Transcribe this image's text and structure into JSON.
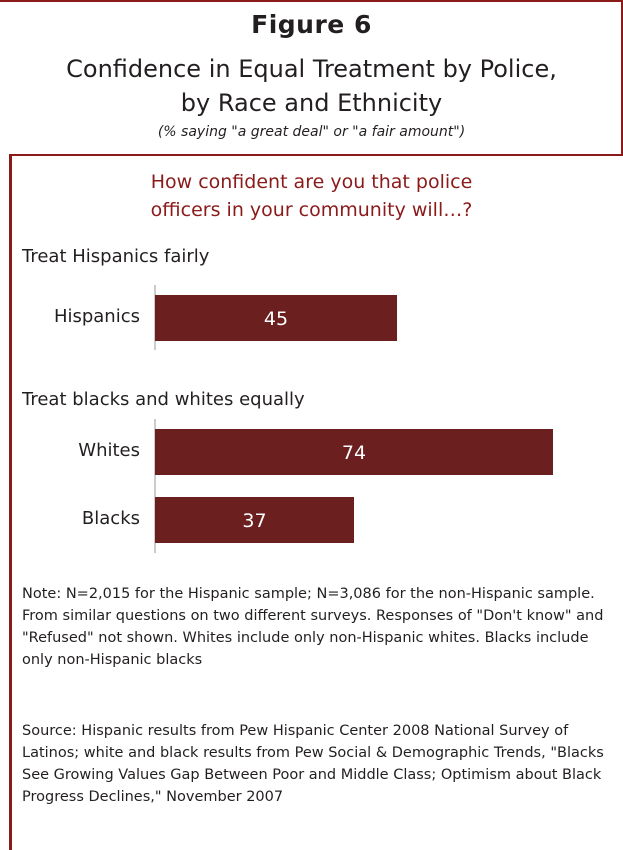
{
  "figure_label": "Figure 6",
  "title_line1": "Confidence in Equal Treatment by Police,",
  "title_line2": "by Race and Ethnicity",
  "subtitle": "(% saying \"a great deal\" or \"a fair amount\")",
  "question_line1": "How confident are you that police",
  "question_line2": "officers in your community will…?",
  "colors": {
    "bar": "#6b1f1f",
    "accent": "#8b1a1a",
    "bar_label": "#ffffff"
  },
  "chart_data": {
    "type": "bar",
    "orientation": "horizontal",
    "groups": [
      {
        "label": "Treat Hispanics fairly",
        "bars": [
          {
            "category": "Hispanics",
            "value": 45
          }
        ]
      },
      {
        "label": "Treat blacks and whites equally",
        "bars": [
          {
            "category": "Whites",
            "value": 74
          },
          {
            "category": "Blacks",
            "value": 37
          }
        ]
      }
    ],
    "xlim": [
      0,
      74
    ],
    "grid": false
  },
  "note": "Note: N=2,015 for the Hispanic sample; N=3,086 for the non-Hispanic sample. From similar questions on two different surveys. Responses of \"Don't know\" and \"Refused\" not shown. Whites include only non-Hispanic whites. Blacks include only non-Hispanic blacks",
  "source": "Source: Hispanic results from Pew Hispanic Center 2008 National Survey of Latinos; white and black results from Pew Social & Demographic Trends, \"Blacks See Growing Values Gap Between Poor and Middle Class; Optimism about Black Progress Declines,\" November 2007"
}
